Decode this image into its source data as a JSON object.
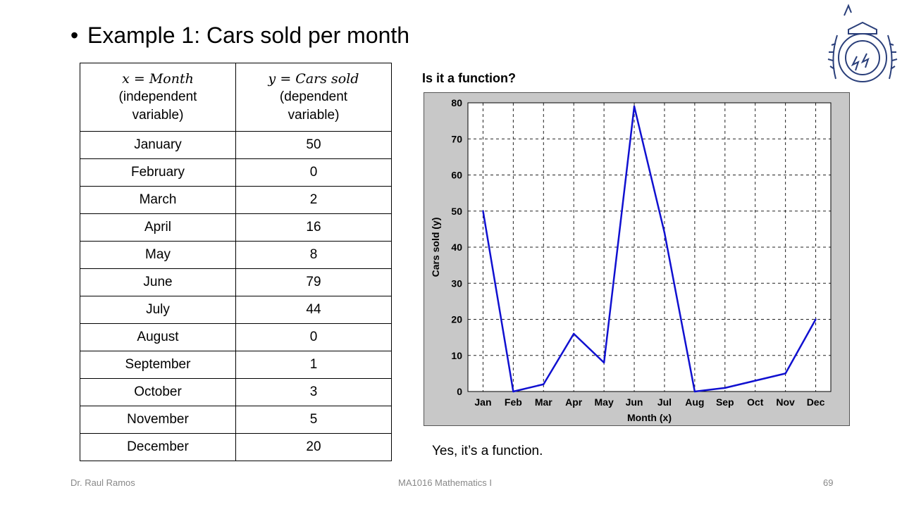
{
  "slide": {
    "title": "Example 1: Cars sold per month",
    "question": "Is it a function?",
    "answer": "Yes, it’s a function."
  },
  "table": {
    "header": {
      "x_math": "x = Month",
      "x_desc": "(independent variable)",
      "y_math": "y = Cars sold",
      "y_desc": "(dependent variable)"
    },
    "rows": [
      {
        "month": "January",
        "cars": "50"
      },
      {
        "month": "February",
        "cars": "0"
      },
      {
        "month": "March",
        "cars": "2"
      },
      {
        "month": "April",
        "cars": "16"
      },
      {
        "month": "May",
        "cars": "8"
      },
      {
        "month": "June",
        "cars": "79"
      },
      {
        "month": "July",
        "cars": "44"
      },
      {
        "month": "August",
        "cars": "0"
      },
      {
        "month": "September",
        "cars": "1"
      },
      {
        "month": "October",
        "cars": "3"
      },
      {
        "month": "November",
        "cars": "5"
      },
      {
        "month": "December",
        "cars": "20"
      }
    ]
  },
  "chart_data": {
    "type": "line",
    "categories": [
      "Jan",
      "Feb",
      "Mar",
      "Apr",
      "May",
      "Jun",
      "Jul",
      "Aug",
      "Sep",
      "Oct",
      "Nov",
      "Dec"
    ],
    "series": [
      {
        "values": [
          50,
          0,
          2,
          16,
          8,
          79,
          44,
          0,
          1,
          3,
          5,
          20
        ]
      }
    ],
    "xlabel": "Month (x)",
    "ylabel": "Cars sold (y)",
    "ylim": [
      0,
      80
    ],
    "yticks": [
      0,
      10,
      20,
      30,
      40,
      50,
      60,
      70,
      80
    ],
    "grid": true,
    "line_color": "#1010d0",
    "panel_color": "#c8c8c8"
  },
  "footer": {
    "author": "Dr. Raul Ramos",
    "course": "MA1016 Mathematics I",
    "page": "69"
  }
}
